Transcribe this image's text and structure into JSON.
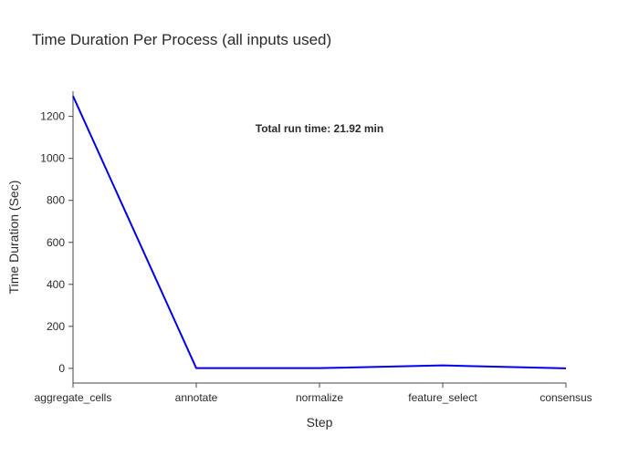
{
  "chart_data": {
    "type": "line",
    "title": "Time Duration Per Process (all inputs used)",
    "xlabel": "Step",
    "ylabel": "Time Duration (Sec)",
    "categories": [
      "aggregate_cells",
      "annotate",
      "normalize",
      "feature_select",
      "consensus"
    ],
    "series": [
      {
        "values": [
          1297,
          1,
          1,
          14,
          0
        ],
        "color": "#0000ee"
      }
    ],
    "ylim": [
      -70,
      1320
    ],
    "yticks": [
      0,
      200,
      400,
      600,
      800,
      1000,
      1200
    ],
    "annotation": "Total run time: 21.92 min",
    "grid": false,
    "legend": "none"
  }
}
